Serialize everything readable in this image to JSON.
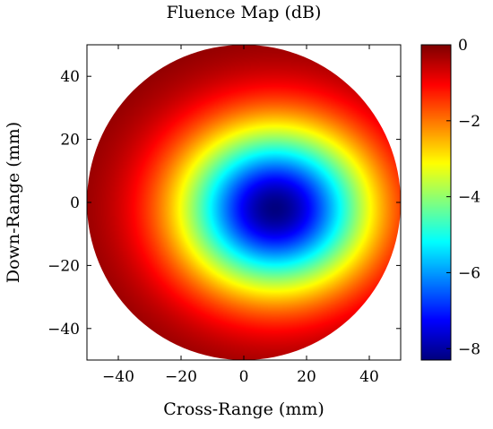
{
  "chart_data": {
    "type": "heatmap",
    "title": "Fluence Map (dB)",
    "xlabel": "Cross-Range (mm)",
    "ylabel": "Down-Range (mm)",
    "xlim": [
      -50,
      50
    ],
    "ylim": [
      -50,
      50
    ],
    "x_ticks": [
      -40,
      -20,
      0,
      20,
      40
    ],
    "y_ticks": [
      -40,
      -20,
      0,
      20,
      40
    ],
    "x_tick_labels": [
      "−40",
      "−20",
      "0",
      "20",
      "40"
    ],
    "y_tick_labels": [
      "−40",
      "−20",
      "0",
      "20",
      "40"
    ],
    "colorbar": {
      "range": [
        -8.3,
        0
      ],
      "ticks": [
        0,
        -2,
        -4,
        -6,
        -8
      ],
      "tick_labels": [
        "0",
        "−2",
        "−4",
        "−6",
        "−8"
      ],
      "colormap": "jet"
    },
    "field": {
      "support": "circle",
      "support_center": [
        0,
        0
      ],
      "support_radius": 50,
      "minimum_location": [
        10,
        -2
      ],
      "minimum_value": -8.3,
      "edge_value": 0,
      "falloff_shape": "elliptical, wider in cross-range than down-range"
    },
    "grid": false
  }
}
